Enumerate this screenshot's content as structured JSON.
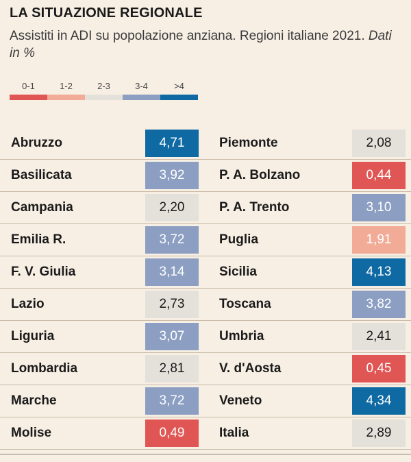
{
  "title": "LA SITUAZIONE REGIONALE",
  "subtitle_main": "Assistiti in ADI su popolazione anziana. Regioni italiane 2021.",
  "subtitle_unit": "Dati in %",
  "legend": [
    {
      "label": "0-1",
      "color": "#e05654"
    },
    {
      "label": "1-2",
      "color": "#f2ab97"
    },
    {
      "label": "2-3",
      "color": "#e4e0da"
    },
    {
      "label": "3-4",
      "color": "#8c9fc2"
    },
    {
      "label": ">4",
      "color": "#0f6aa3"
    }
  ],
  "colors": {
    "bin_0_1": "#e05654",
    "bin_1_2": "#f2ab97",
    "bin_2_3": "#e4e0da",
    "bin_3_4": "#8c9fc2",
    "bin_4_plus": "#0f6aa3",
    "background": "#f7efe4"
  },
  "chart_data": {
    "type": "table",
    "unit": "%",
    "columns": [
      {
        "rows": [
          {
            "region": "Abruzzo",
            "value": 4.71,
            "label": "4,71"
          },
          {
            "region": "Basilicata",
            "value": 3.92,
            "label": "3,92"
          },
          {
            "region": "Campania",
            "value": 2.2,
            "label": "2,20"
          },
          {
            "region": "Emilia R.",
            "value": 3.72,
            "label": "3,72"
          },
          {
            "region": "F. V. Giulia",
            "value": 3.14,
            "label": "3,14"
          },
          {
            "region": "Lazio",
            "value": 2.73,
            "label": "2,73"
          },
          {
            "region": "Liguria",
            "value": 3.07,
            "label": "3,07"
          },
          {
            "region": "Lombardia",
            "value": 2.81,
            "label": "2,81"
          },
          {
            "region": "Marche",
            "value": 3.72,
            "label": "3,72"
          },
          {
            "region": "Molise",
            "value": 0.49,
            "label": "0,49"
          }
        ]
      },
      {
        "rows": [
          {
            "region": "Piemonte",
            "value": 2.08,
            "label": "2,08"
          },
          {
            "region": "P. A. Bolzano",
            "value": 0.44,
            "label": "0,44"
          },
          {
            "region": "P. A. Trento",
            "value": 3.1,
            "label": "3,10"
          },
          {
            "region": "Puglia",
            "value": 1.91,
            "label": "1,91"
          },
          {
            "region": "Sicilia",
            "value": 4.13,
            "label": "4,13"
          },
          {
            "region": "Toscana",
            "value": 3.82,
            "label": "3,82"
          },
          {
            "region": "Umbria",
            "value": 2.41,
            "label": "2,41"
          },
          {
            "region": "V. d'Aosta",
            "value": 0.45,
            "label": "0,45"
          },
          {
            "region": "Veneto",
            "value": 4.34,
            "label": "4,34"
          },
          {
            "region": "Italia",
            "value": 2.89,
            "label": "2,89"
          }
        ]
      }
    ]
  }
}
